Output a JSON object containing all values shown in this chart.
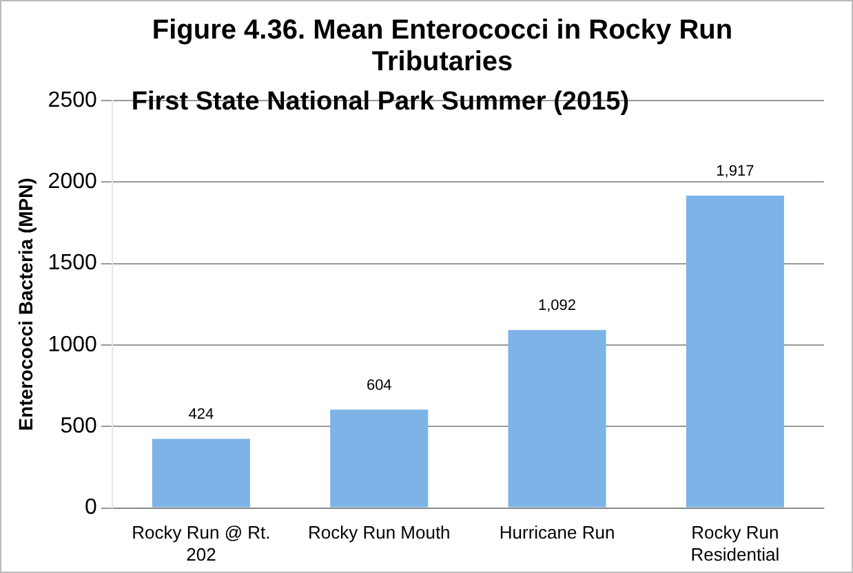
{
  "chart_data": {
    "type": "bar",
    "title": "Figure 4.36. Mean Enterococci in Rocky Run Tributaries",
    "subtitle": "First State National Park Summer (2015)",
    "ylabel": "Enterococci Bacteria (MPN)",
    "categories": [
      "Rocky Run @ Rt. 202",
      "Rocky Run Mouth",
      "Hurricane Run",
      "Rocky Run Residential"
    ],
    "values": [
      424,
      604,
      1092,
      1917
    ],
    "value_labels": [
      "424",
      "604",
      "1,092",
      "1,917"
    ],
    "color": "#7db3e6",
    "ylim": [
      0,
      2500
    ],
    "yticks": [
      0,
      500,
      1000,
      1500,
      2000,
      2500
    ],
    "grid": "y",
    "legend": false
  }
}
